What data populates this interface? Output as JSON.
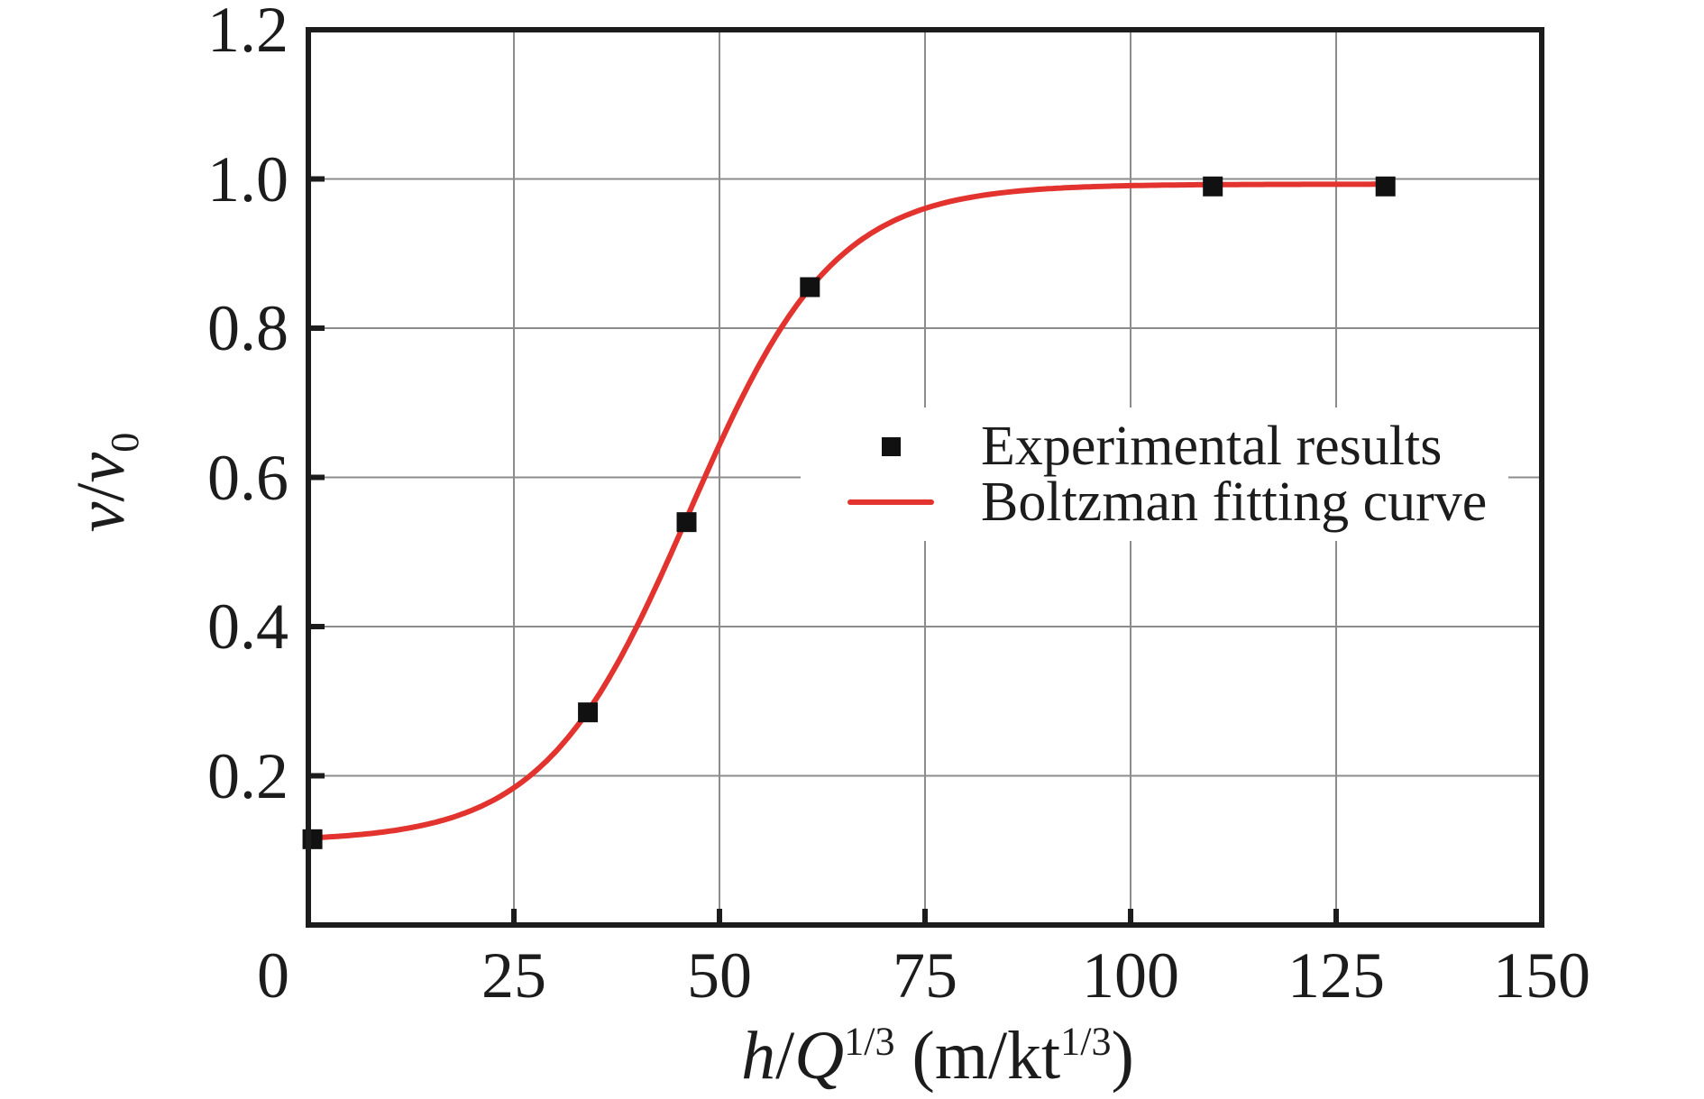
{
  "chart_data": {
    "type": "scatter",
    "title": "",
    "xlabel": "h/Q^1/3 (m/kt^1/3)",
    "ylabel": "v/v0",
    "xlim": [
      0,
      150
    ],
    "ylim": [
      0,
      1.2
    ],
    "grid": true,
    "legend_position": "center-right",
    "x_ticks": [
      {
        "v": 0,
        "label": "0",
        "label_offset": -39
      },
      {
        "v": 25,
        "label": "25",
        "label_offset": 0
      },
      {
        "v": 50,
        "label": "50",
        "label_offset": 0
      },
      {
        "v": 75,
        "label": "75",
        "label_offset": 0
      },
      {
        "v": 100,
        "label": "100",
        "label_offset": 0
      },
      {
        "v": 125,
        "label": "125",
        "label_offset": 0
      },
      {
        "v": 150,
        "label": "150",
        "label_offset": 0
      }
    ],
    "y_ticks": [
      {
        "v": 0.2,
        "label": "0.2"
      },
      {
        "v": 0.4,
        "label": "0.4"
      },
      {
        "v": 0.6,
        "label": "0.6"
      },
      {
        "v": 0.8,
        "label": "0.8"
      },
      {
        "v": 1.0,
        "label": "1.0"
      },
      {
        "v": 1.2,
        "label": "1.2"
      }
    ],
    "series": [
      {
        "name": "Experimental results",
        "type": "scatter",
        "marker": "square",
        "marker_size": 22,
        "color": "#111111",
        "points": [
          [
            0.5,
            0.115
          ],
          [
            34,
            0.285
          ],
          [
            46,
            0.54
          ],
          [
            61,
            0.855
          ],
          [
            110,
            0.99
          ],
          [
            131,
            0.99
          ]
        ]
      },
      {
        "name": "Boltzman fitting curve",
        "type": "line",
        "color": "#e2332f",
        "line_width": 6,
        "fit": "boltzmann",
        "params": {
          "A1": 0.112,
          "A2": 0.993,
          "x0": 46.3,
          "dx": 8.8
        },
        "x_range": [
          0.5,
          131
        ]
      }
    ],
    "x_label_segments": [
      {
        "t": "h",
        "i": true
      },
      {
        "t": "/"
      },
      {
        "t": "Q",
        "i": true
      },
      {
        "t": "1/3",
        "sup": true
      },
      {
        "t": " (m/kt"
      },
      {
        "t": "1/3",
        "sup": true
      },
      {
        "t": ")"
      }
    ],
    "y_label_segments": [
      {
        "t": "v",
        "i": true
      },
      {
        "t": "/"
      },
      {
        "t": "v",
        "i": true
      },
      {
        "t": "0",
        "sub": true
      }
    ],
    "colors": {
      "axis": "#1c1c1c",
      "grid": "#8c8c8c",
      "curve": "#e2332f",
      "marker": "#111111",
      "legend_bg": "#ffffff"
    }
  }
}
